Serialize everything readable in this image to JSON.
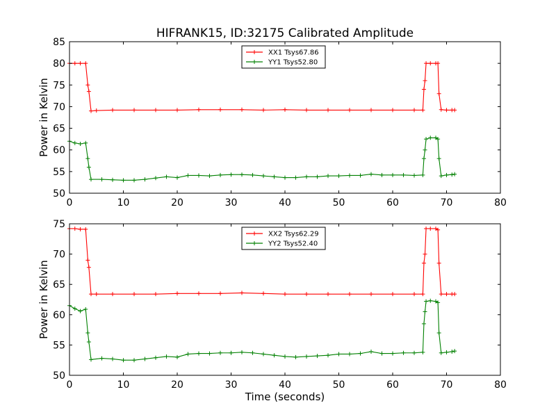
{
  "title": "HIFRANK15, ID:32175 Calibrated Amplitude",
  "xlabel": "Time (seconds)",
  "colors": {
    "red": "#ff0000",
    "green": "#008000"
  },
  "chart_data": [
    {
      "type": "line",
      "title": "HIFRANK15, ID:32175 Calibrated Amplitude",
      "xlabel": "",
      "ylabel": "Power in Kelvin",
      "xlim": [
        0,
        80
      ],
      "ylim": [
        50,
        85
      ],
      "xticks": [
        "0",
        "10",
        "20",
        "30",
        "40",
        "50",
        "60",
        "70",
        "80"
      ],
      "yticks": [
        "50",
        "55",
        "60",
        "65",
        "70",
        "75",
        "80",
        "85"
      ],
      "legend_position": "top-center",
      "grid": false,
      "series": [
        {
          "name": "XX1 Tsys67.86",
          "color": "#ff0000",
          "x": [
            0,
            1,
            2,
            3,
            3.4,
            3.6,
            4,
            5,
            8,
            12,
            16,
            20,
            24,
            28,
            32,
            36,
            40,
            44,
            48,
            52,
            56,
            60,
            64,
            65.6,
            65.8,
            66,
            66.2,
            67,
            68,
            68.4,
            68.6,
            69,
            70,
            71,
            71.5
          ],
          "y": [
            80,
            80,
            80,
            80,
            75,
            73.5,
            69,
            69.1,
            69.2,
            69.2,
            69.2,
            69.2,
            69.3,
            69.3,
            69.3,
            69.2,
            69.3,
            69.2,
            69.2,
            69.2,
            69.2,
            69.2,
            69.2,
            69.2,
            74,
            76,
            80,
            80,
            80,
            80,
            73,
            69.3,
            69.2,
            69.2,
            69.2
          ]
        },
        {
          "name": "YY1 Tsys52.80",
          "color": "#008000",
          "x": [
            0,
            1,
            2,
            3,
            3.4,
            3.6,
            4,
            6,
            8,
            10,
            12,
            14,
            16,
            18,
            20,
            22,
            24,
            26,
            28,
            30,
            32,
            34,
            36,
            38,
            40,
            42,
            44,
            46,
            48,
            50,
            52,
            54,
            56,
            58,
            60,
            62,
            64,
            65.6,
            65.8,
            66,
            66.2,
            67,
            68,
            68.4,
            68.6,
            69,
            70,
            71,
            71.5
          ],
          "y": [
            62,
            61.6,
            61.4,
            61.6,
            58,
            56,
            53.2,
            53.2,
            53.1,
            53,
            53,
            53.2,
            53.5,
            53.8,
            53.6,
            54.1,
            54.1,
            54,
            54.2,
            54.3,
            54.3,
            54.2,
            54,
            53.8,
            53.6,
            53.6,
            53.8,
            53.8,
            54,
            54,
            54.1,
            54.1,
            54.4,
            54.2,
            54.2,
            54.2,
            54.1,
            54.2,
            58,
            60,
            62.5,
            62.8,
            62.8,
            62.5,
            58,
            54,
            54.2,
            54.3,
            54.4
          ]
        }
      ]
    },
    {
      "type": "line",
      "title": "",
      "xlabel": "Time (seconds)",
      "ylabel": "Power in Kelvin",
      "xlim": [
        0,
        80
      ],
      "ylim": [
        50,
        75
      ],
      "xticks": [
        "0",
        "10",
        "20",
        "30",
        "40",
        "50",
        "60",
        "70",
        "80"
      ],
      "yticks": [
        "50",
        "55",
        "60",
        "65",
        "70",
        "75"
      ],
      "legend_position": "top-center",
      "grid": false,
      "series": [
        {
          "name": "XX2 Tsys62.29",
          "color": "#ff0000",
          "x": [
            0,
            1,
            2,
            3,
            3.4,
            3.6,
            4,
            5,
            8,
            12,
            16,
            20,
            24,
            28,
            32,
            36,
            40,
            44,
            48,
            52,
            56,
            60,
            64,
            65.6,
            65.8,
            66,
            66.2,
            67,
            68,
            68.4,
            68.6,
            69,
            70,
            71,
            71.5
          ],
          "y": [
            74.2,
            74.2,
            74.1,
            74.1,
            69,
            67.8,
            63.4,
            63.4,
            63.4,
            63.4,
            63.4,
            63.5,
            63.5,
            63.5,
            63.6,
            63.5,
            63.4,
            63.4,
            63.4,
            63.4,
            63.4,
            63.4,
            63.4,
            63.4,
            68.5,
            70,
            74.2,
            74.2,
            74.2,
            74,
            68.5,
            63.4,
            63.4,
            63.4,
            63.4
          ]
        },
        {
          "name": "YY2 Tsys52.40",
          "color": "#008000",
          "x": [
            0,
            1,
            2,
            3,
            3.4,
            3.6,
            4,
            6,
            8,
            10,
            12,
            14,
            16,
            18,
            20,
            22,
            24,
            26,
            28,
            30,
            32,
            34,
            36,
            38,
            40,
            42,
            44,
            46,
            48,
            50,
            52,
            54,
            56,
            58,
            60,
            62,
            64,
            65.6,
            65.8,
            66,
            66.2,
            67,
            68,
            68.4,
            68.6,
            69,
            70,
            71,
            71.5
          ],
          "y": [
            61.5,
            61,
            60.6,
            60.9,
            57,
            55.5,
            52.6,
            52.8,
            52.7,
            52.5,
            52.5,
            52.7,
            52.9,
            53.1,
            53,
            53.5,
            53.6,
            53.6,
            53.7,
            53.7,
            53.8,
            53.7,
            53.5,
            53.3,
            53.1,
            53,
            53.1,
            53.2,
            53.3,
            53.5,
            53.5,
            53.6,
            53.9,
            53.6,
            53.6,
            53.7,
            53.7,
            53.8,
            58.5,
            60.5,
            62.2,
            62.3,
            62.2,
            62,
            57,
            53.7,
            53.8,
            53.9,
            54
          ]
        }
      ]
    }
  ]
}
